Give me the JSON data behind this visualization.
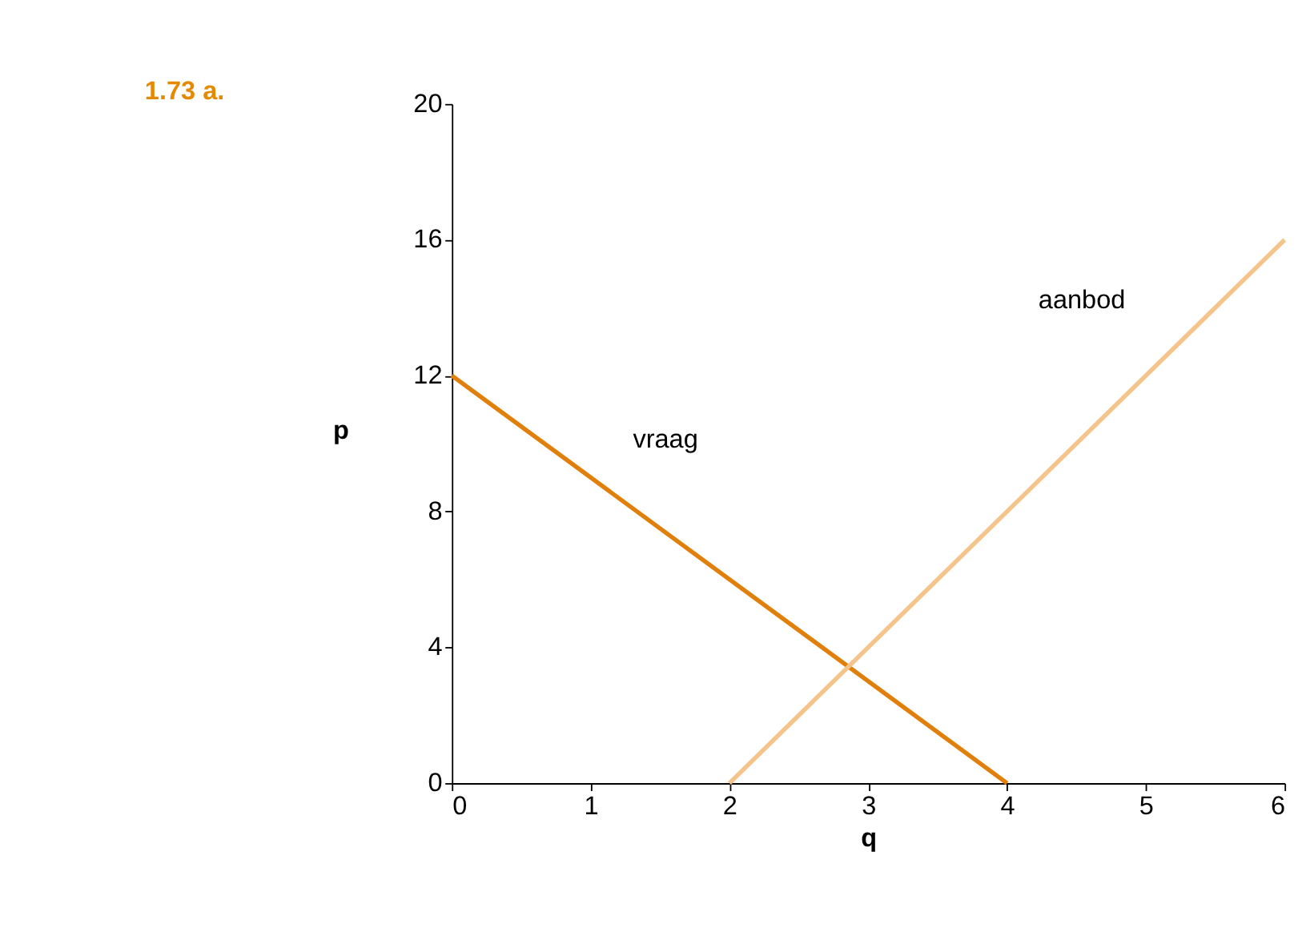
{
  "chart_data": {
    "type": "line",
    "title": "1.73 a.",
    "xlabel": "q",
    "ylabel": "p",
    "xlim": [
      0,
      6
    ],
    "xticks": [
      0,
      1,
      2,
      3,
      4,
      5,
      6
    ],
    "ylim": [
      0,
      20
    ],
    "yticks": [
      0,
      4,
      8,
      12,
      16,
      20
    ],
    "grid": false,
    "marker": "none",
    "line_style": "solid",
    "series": [
      {
        "name": "vraag",
        "color": "#e07f0a",
        "x": [
          0,
          4
        ],
        "values": [
          12,
          0
        ]
      },
      {
        "name": "aanbod",
        "color": "#f5c48a",
        "x": [
          2,
          6
        ],
        "values": [
          0,
          16
        ]
      }
    ]
  }
}
